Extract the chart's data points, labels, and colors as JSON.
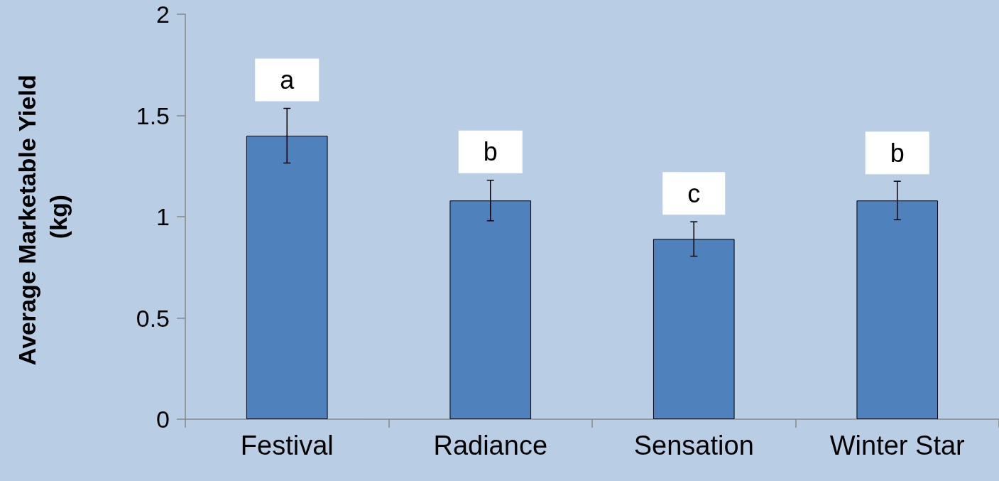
{
  "chart_data": {
    "type": "bar",
    "ylabel": "Average Marketable Yield (kg)",
    "categories": [
      "Festival",
      "Radiance",
      "Sensation",
      "Winter Star"
    ],
    "values": [
      1.4,
      1.08,
      0.89,
      1.08
    ],
    "errors": [
      0.135,
      0.1,
      0.085,
      0.095
    ],
    "color": "#4f81bd",
    "ylim": [
      0,
      2
    ],
    "yticks": [
      0,
      0.5,
      1,
      1.5,
      2
    ],
    "grid": false,
    "annotations": [
      "a",
      "b",
      "c",
      "b"
    ]
  }
}
